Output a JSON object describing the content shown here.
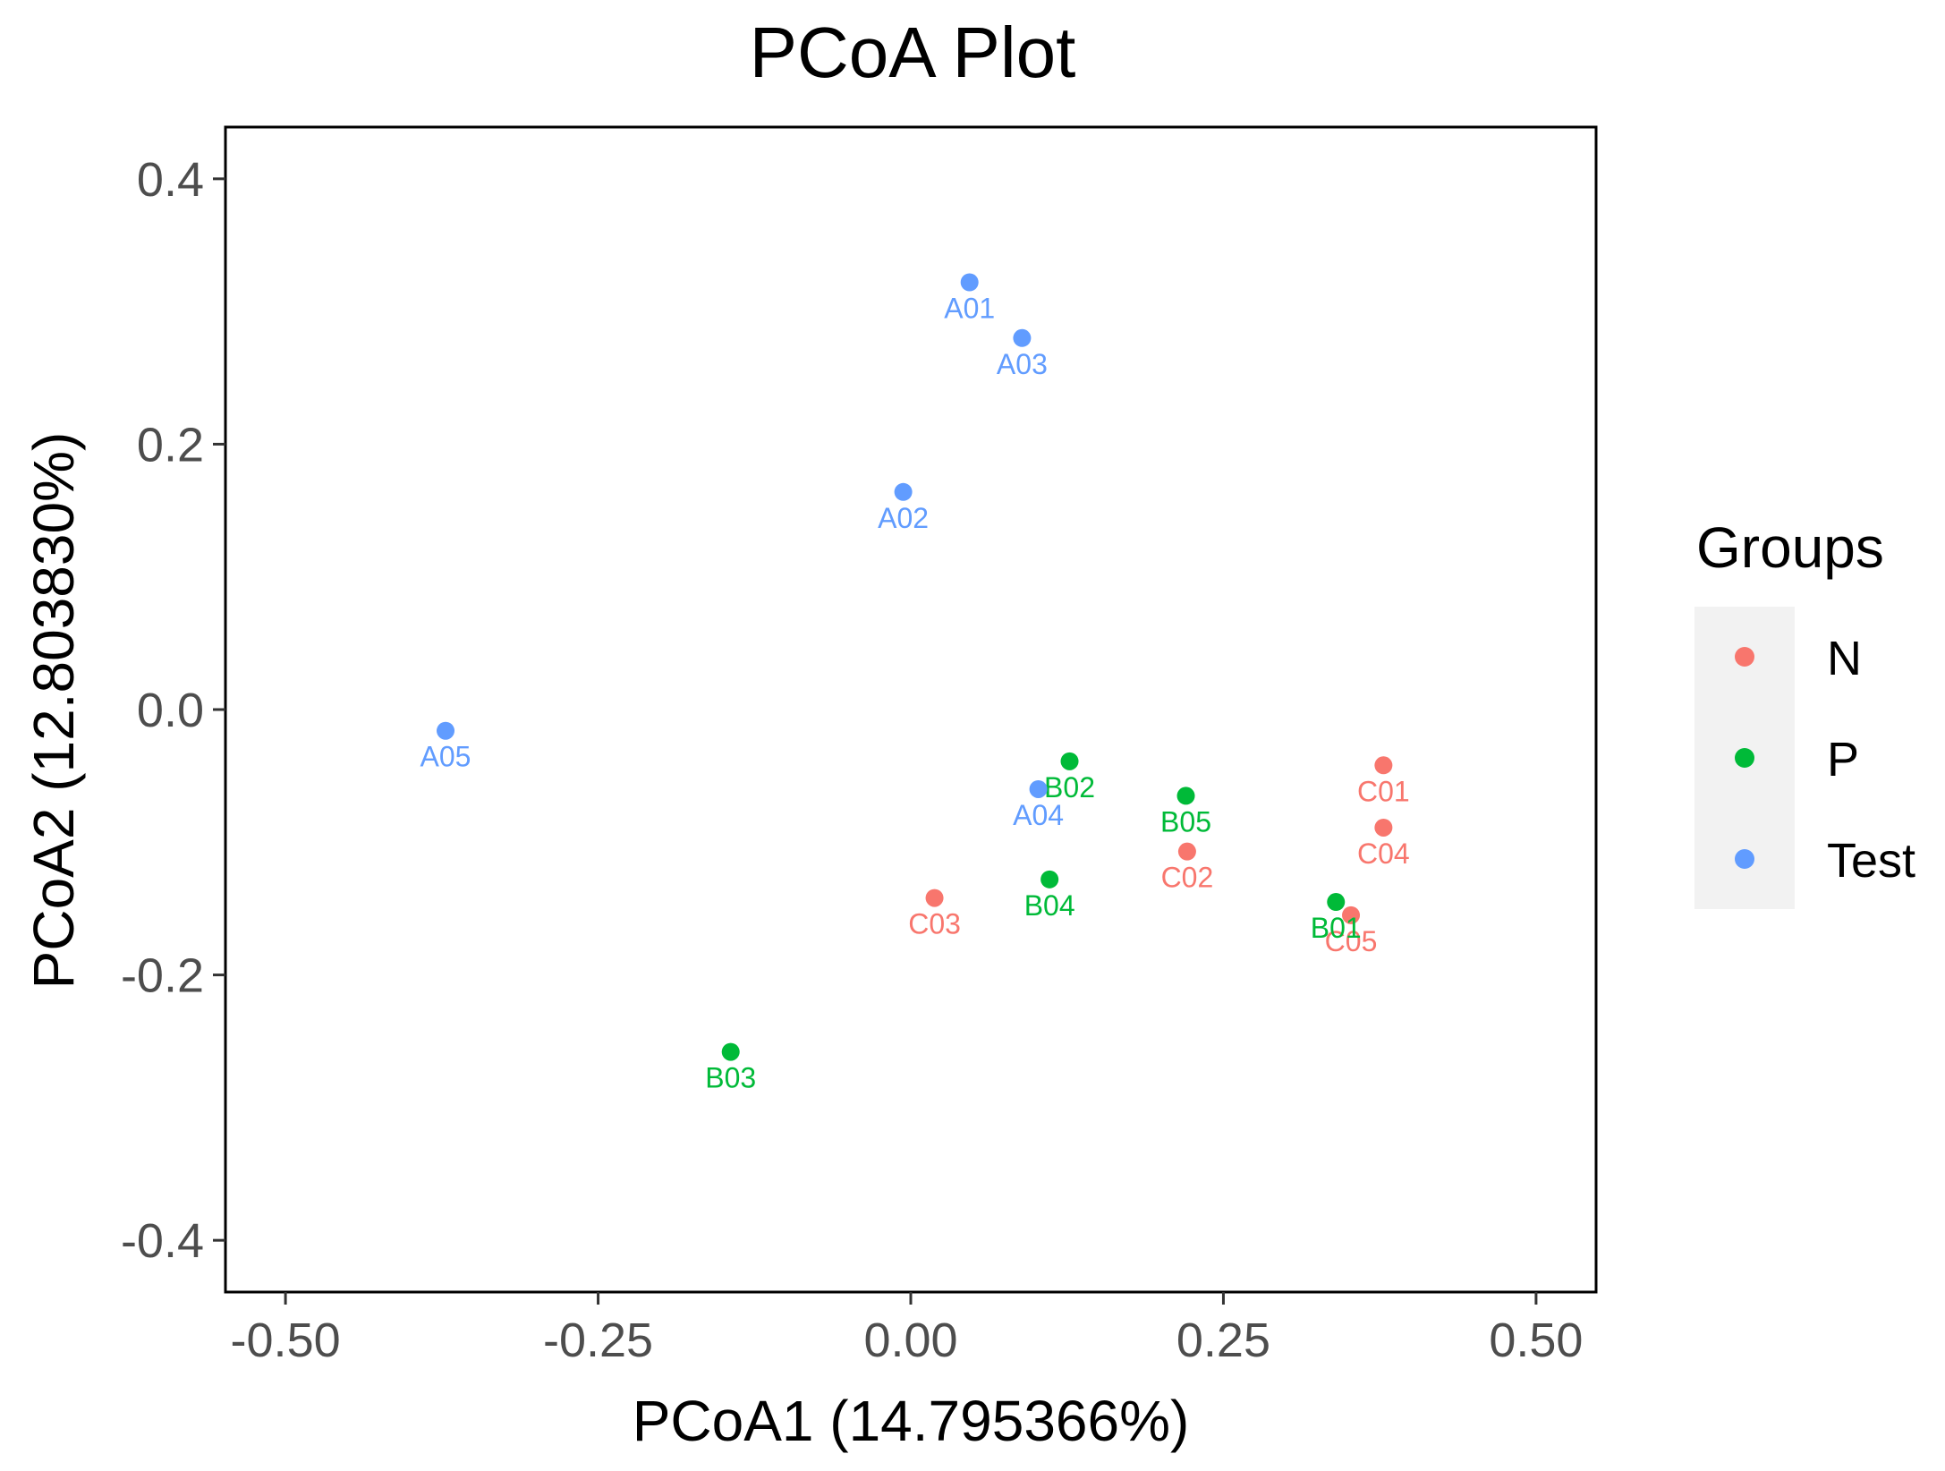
{
  "chart_data": {
    "type": "scatter",
    "title": "PCoA Plot",
    "xlabel": "PCoA1 (14.795366%)",
    "ylabel": "PCoA2 (12.803830%)",
    "xlim": [
      -0.548,
      0.548
    ],
    "ylim": [
      -0.439,
      0.439
    ],
    "x_ticks": [
      -0.5,
      -0.25,
      0,
      0.25,
      0.5
    ],
    "x_tick_labels": [
      "-0.50",
      "-0.25",
      "0.00",
      "0.25",
      "0.50"
    ],
    "y_ticks": [
      -0.4,
      -0.2,
      0,
      0.2,
      0.4
    ],
    "y_tick_labels": [
      "-0.4",
      "-0.2",
      "0.0",
      "0.2",
      "0.4"
    ],
    "grid": false,
    "legend": {
      "title": "Groups",
      "placement": "right",
      "entries": [
        {
          "name": "N",
          "color": "#F8766D"
        },
        {
          "name": "P",
          "color": "#00BA38"
        },
        {
          "name": "Test",
          "color": "#619CFF"
        }
      ]
    },
    "series": [
      {
        "name": "N",
        "color": "#F8766D",
        "points": [
          {
            "label": "C01",
            "x": 0.378,
            "y": -0.042
          },
          {
            "label": "C04",
            "x": 0.378,
            "y": -0.089
          },
          {
            "label": "C02",
            "x": 0.221,
            "y": -0.107
          },
          {
            "label": "C03",
            "x": 0.019,
            "y": -0.142
          },
          {
            "label": "C05",
            "x": 0.352,
            "y": -0.155
          }
        ]
      },
      {
        "name": "P",
        "color": "#00BA38",
        "points": [
          {
            "label": "B02",
            "x": 0.127,
            "y": -0.039
          },
          {
            "label": "B05",
            "x": 0.22,
            "y": -0.065
          },
          {
            "label": "B04",
            "x": 0.111,
            "y": -0.128
          },
          {
            "label": "B01",
            "x": 0.34,
            "y": -0.145
          },
          {
            "label": "B03",
            "x": -0.144,
            "y": -0.258
          }
        ]
      },
      {
        "name": "Test",
        "color": "#619CFF",
        "points": [
          {
            "label": "A01",
            "x": 0.047,
            "y": 0.322
          },
          {
            "label": "A03",
            "x": 0.089,
            "y": 0.28
          },
          {
            "label": "A02",
            "x": -0.006,
            "y": 0.164
          },
          {
            "label": "A05",
            "x": -0.372,
            "y": -0.016
          },
          {
            "label": "A04",
            "x": 0.102,
            "y": -0.06
          }
        ]
      }
    ]
  }
}
